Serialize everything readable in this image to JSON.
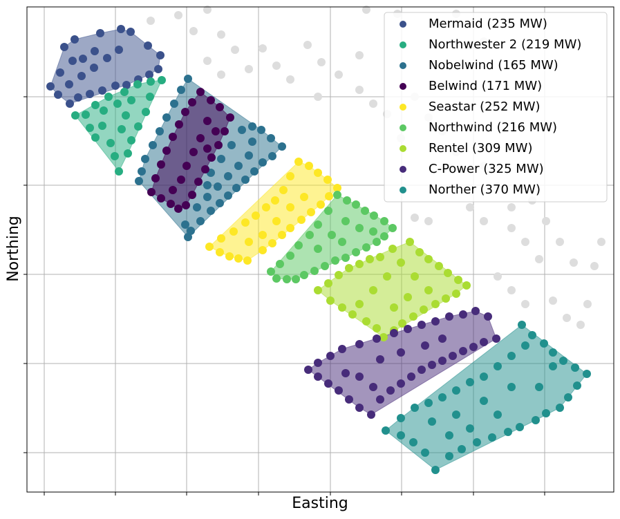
{
  "chart_data": {
    "type": "scatter",
    "x_label": "Easting",
    "y_label": "Northing",
    "xlim": [
      0,
      849
    ],
    "ylim": [
      0,
      702
    ],
    "xticks": [
      25,
      128,
      231,
      335,
      439,
      542,
      646,
      749
    ],
    "yticks": [
      57,
      186,
      315,
      444,
      572
    ],
    "grid": true,
    "legend": "upper right",
    "other_turbines": {
      "color": "#dddddd",
      "x": [
        179,
        219,
        261,
        241,
        281,
        301,
        341,
        261,
        281,
        321,
        361,
        381,
        406,
        426,
        451,
        481,
        501,
        521,
        541,
        561,
        581,
        601,
        621,
        661,
        681,
        701,
        731,
        751,
        771,
        791,
        721,
        741,
        701,
        661,
        641,
        681,
        701,
        721,
        761,
        781,
        801,
        811,
        821,
        831,
        581,
        561,
        491,
        536,
        621,
        661,
        481,
        421
      ],
      "values": [
        682,
        690,
        698,
        667,
        662,
        640,
        642,
        624,
        604,
        612,
        617,
        597,
        647,
        622,
        604,
        582,
        562,
        547,
        512,
        572,
        542,
        522,
        492,
        472,
        442,
        412,
        422,
        392,
        362,
        332,
        362,
        337,
        382,
        392,
        412,
        312,
        292,
        272,
        277,
        252,
        242,
        272,
        327,
        362,
        392,
        397,
        698,
        692,
        692,
        652,
        632,
        572
      ]
    },
    "series": [
      {
        "name": "Mermaid (235 MW)",
        "color": "#3b518b",
        "x": [
          34,
          48,
          54,
          69,
          106,
          136,
          150,
          175,
          193,
          190,
          177,
          161,
          144,
          128,
          109,
          91,
          74,
          62,
          45,
          61,
          79,
          97,
          116,
          133,
          81,
          98,
          66
        ],
        "values": [
          587,
          607,
          644,
          655,
          664,
          670,
          666,
          646,
          632,
          612,
          604,
          597,
          589,
          588,
          581,
          576,
          571,
          562,
          575,
          590,
          602,
          614,
          628,
          640,
          627,
          638,
          624
        ]
      },
      {
        "name": "Northwester 2 (219 MW)",
        "color": "#27ad81",
        "x": [
          70,
          85,
          99,
          118,
          141,
          160,
          179,
          195,
          178,
          172,
          161,
          151,
          133,
          127,
          121,
          109,
          99,
          91,
          111,
          131,
          151,
          143,
          137,
          146
        ],
        "values": [
          545,
          546,
          560,
          572,
          579,
          590,
          594,
          596,
          572,
          550,
          529,
          509,
          464,
          486,
          505,
          530,
          513,
          527,
          552,
          562,
          567,
          545,
          525,
          490
        ]
      },
      {
        "name": "Nobelwind (165 MW)",
        "color": "#2c718e",
        "x": [
          233,
          223,
          213,
          202,
          192,
          182,
          171,
          166,
          162,
          311,
          326,
          339,
          353,
          369,
          355,
          341,
          329,
          316,
          303,
          291,
          279,
          266,
          251,
          237,
          233,
          229,
          246,
          261,
          276,
          291,
          306,
          321,
          326,
          296,
          281,
          266,
          261
        ],
        "values": [
          598,
          582,
          562,
          542,
          522,
          502,
          482,
          464,
          450,
          524,
          529,
          524,
          512,
          500,
          486,
          477,
          464,
          452,
          440,
          429,
          418,
          407,
          392,
          378,
          369,
          387,
          412,
          427,
          442,
          457,
          472,
          487,
          507,
          502,
          482,
          462,
          444
        ]
      },
      {
        "name": "Belwind (171 MW)",
        "color": "#440154",
        "x": [
          251,
          266,
          279,
          294,
          286,
          277,
          267,
          258,
          248,
          239,
          230,
          219,
          208,
          194,
          180,
          186,
          194,
          202,
          211,
          220,
          229,
          239,
          261,
          251,
          241,
          231,
          223,
          211,
          273,
          261
        ],
        "values": [
          579,
          567,
          557,
          542,
          522,
          502,
          484,
          467,
          449,
          430,
          415,
          410,
          417,
          425,
          434,
          454,
          474,
          494,
          514,
          532,
          550,
          564,
          537,
          512,
          492,
          472,
          452,
          437,
          522,
          497
        ]
      },
      {
        "name": "Seastar (252 MW)",
        "color": "#fde725",
        "x": [
          393,
          408,
          421,
          435,
          449,
          437,
          425,
          411,
          397,
          381,
          369,
          355,
          341,
          319,
          306,
          293,
          279,
          264,
          281,
          299,
          316,
          331,
          346,
          359,
          371,
          381,
          361,
          341,
          321,
          381,
          401
        ],
        "values": [
          478,
          472,
          462,
          452,
          440,
          428,
          416,
          405,
          394,
          382,
          372,
          360,
          350,
          335,
          338,
          341,
          347,
          355,
          367,
          377,
          390,
          400,
          412,
          422,
          437,
          457,
          392,
          372,
          362,
          412,
          427
        ]
      },
      {
        "name": "Northwind (216 MW)",
        "color": "#5cc863",
        "x": [
          449,
          463,
          476,
          489,
          502,
          517,
          529,
          517,
          506,
          491,
          476,
          461,
          446,
          431,
          416,
          401,
          389,
          376,
          361,
          353,
          366,
          381,
          393,
          409,
          421,
          436,
          461,
          441,
          421,
          481,
          501,
          456
        ],
        "values": [
          430,
          422,
          416,
          407,
          400,
          392,
          382,
          370,
          362,
          354,
          347,
          339,
          335,
          327,
          320,
          314,
          308,
          308,
          309,
          319,
          330,
          342,
          357,
          372,
          387,
          407,
          392,
          372,
          352,
          382,
          377,
          362
        ]
      },
      {
        "name": "Rentel (309 MW)",
        "color": "#aadc32",
        "x": [
          554,
          568,
          581,
          596,
          609,
          624,
          636,
          621,
          606,
          591,
          574,
          559,
          543,
          531,
          516,
          506,
          491,
          471,
          456,
          439,
          421,
          436,
          451,
          466,
          481,
          496,
          511,
          529,
          541,
          521,
          501,
          481,
          561,
          581,
          551,
          531
        ],
        "values": [
          362,
          347,
          337,
          327,
          317,
          307,
          299,
          287,
          280,
          272,
          264,
          254,
          244,
          234,
          224,
          237,
          247,
          257,
          267,
          277,
          292,
          302,
          314,
          324,
          330,
          337,
          340,
          352,
          332,
          312,
          292,
          272,
          312,
          292,
          282,
          267
        ]
      },
      {
        "name": "C-Power (325 MW)",
        "color": "#472c7a",
        "x": [
          649,
          667,
          679,
          661,
          646,
          631,
          616,
          601,
          586,
          571,
          556,
          541,
          526,
          511,
          498,
          481,
          466,
          451,
          436,
          421,
          407,
          421,
          439,
          456,
          481,
          506,
          531,
          551,
          571,
          591,
          611,
          631,
          601,
          576,
          541,
          511,
          481,
          501,
          461
        ],
        "values": [
          262,
          254,
          222,
          217,
          210,
          204,
          197,
          190,
          184,
          177,
          167,
          157,
          147,
          134,
          112,
          122,
          134,
          147,
          157,
          167,
          177,
          187,
          197,
          207,
          214,
          222,
          230,
          236,
          242,
          247,
          254,
          257,
          222,
          212,
          202,
          192,
          167,
          152,
          172
        ]
      },
      {
        "name": "Norther (370 MW)",
        "color": "#21908d",
        "x": [
          716,
          731,
          748,
          761,
          776,
          793,
          810,
          796,
          783,
          771,
          751,
          736,
          713,
          696,
          673,
          651,
          629,
          611,
          591,
          576,
          559,
          541,
          519,
          541,
          561,
          581,
          601,
          621,
          641,
          661,
          681,
          701,
          721,
          661,
          681,
          641,
          611,
          701,
          741,
          761,
          621,
          586
        ],
        "values": [
          242,
          227,
          215,
          202,
          190,
          180,
          171,
          154,
          137,
          122,
          114,
          104,
          94,
          87,
          79,
          72,
          62,
          52,
          32,
          57,
          72,
          82,
          89,
          107,
          122,
          129,
          137,
          147,
          159,
          167,
          182,
          197,
          212,
          132,
          112,
          92,
          82,
          152,
          152,
          182,
          112,
          102
        ]
      }
    ]
  }
}
